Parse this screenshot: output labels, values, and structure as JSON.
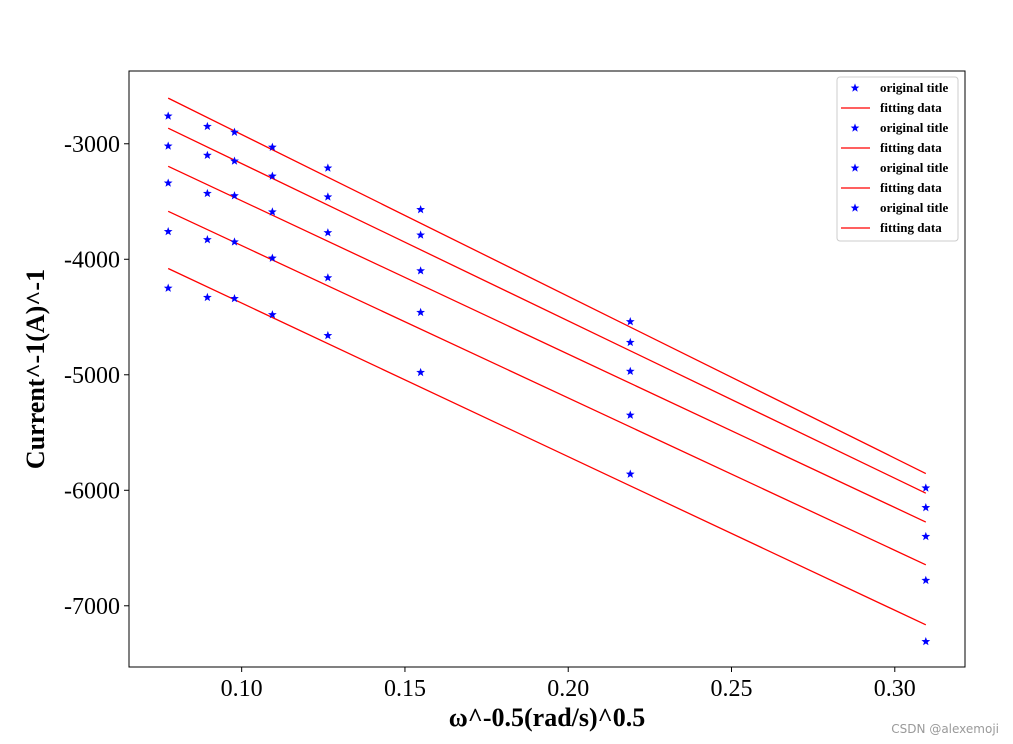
{
  "chart_data": {
    "type": "scatter",
    "title": "",
    "xlabel": "ω^-0.5(rad/s)^0.5",
    "ylabel": "Current^-1(A)^-1",
    "xlim": [
      0.0655,
      0.3215
    ],
    "ylim": [
      -7530,
      -2370
    ],
    "xticks": [
      0.1,
      0.15,
      0.2,
      0.25,
      0.3
    ],
    "xtick_labels": [
      "0.10",
      "0.15",
      "0.20",
      "0.25",
      "0.30"
    ],
    "yticks": [
      -3000,
      -4000,
      -5000,
      -6000,
      -7000
    ],
    "ytick_labels": [
      "-3000",
      "-4000",
      "-5000",
      "-6000",
      "-7000"
    ],
    "grid": false,
    "legend_position": "top-right",
    "x": [
      0.0775,
      0.0895,
      0.0978,
      0.1094,
      0.1264,
      0.1548,
      0.219,
      0.3095
    ],
    "series": [
      {
        "scatter_label": "original title",
        "fit_label": "fitting data",
        "y": [
          -2760,
          -2850,
          -2900,
          -3030,
          -3210,
          -3570,
          -4540,
          -5980
        ],
        "fit": [
          -2605,
          -5855
        ]
      },
      {
        "scatter_label": "original title",
        "fit_label": "fitting data",
        "y": [
          -3020,
          -3100,
          -3150,
          -3280,
          -3460,
          -3790,
          -4720,
          -6150
        ],
        "fit": [
          -2865,
          -6025
        ]
      },
      {
        "scatter_label": "original title",
        "fit_label": "fitting data",
        "y": [
          -3340,
          -3430,
          -3450,
          -3590,
          -3770,
          -4100,
          -4970,
          -6400
        ],
        "fit": [
          -3195,
          -6275
        ]
      },
      {
        "scatter_label": "original title",
        "fit_label": "fitting data",
        "y": [
          -3760,
          -3830,
          -3850,
          -3990,
          -4160,
          -4460,
          -5350,
          -6780
        ],
        "fit": [
          -3585,
          -6645
        ]
      },
      {
        "scatter_label": "original title",
        "fit_label": "fitting data",
        "y": [
          -4250,
          -4330,
          -4340,
          -4480,
          -4660,
          -4980,
          -5860,
          -7310
        ],
        "fit": [
          -4080,
          -7165
        ]
      }
    ],
    "legend": [
      "original title",
      "fitting data",
      "original title",
      "fitting data",
      "original title",
      "fitting data",
      "original title",
      "fitting data"
    ],
    "colors": {
      "points": "#0000ff",
      "fit_line": "#ff0000",
      "axes": "#000000"
    }
  },
  "watermark": "CSDN @alexemoji"
}
